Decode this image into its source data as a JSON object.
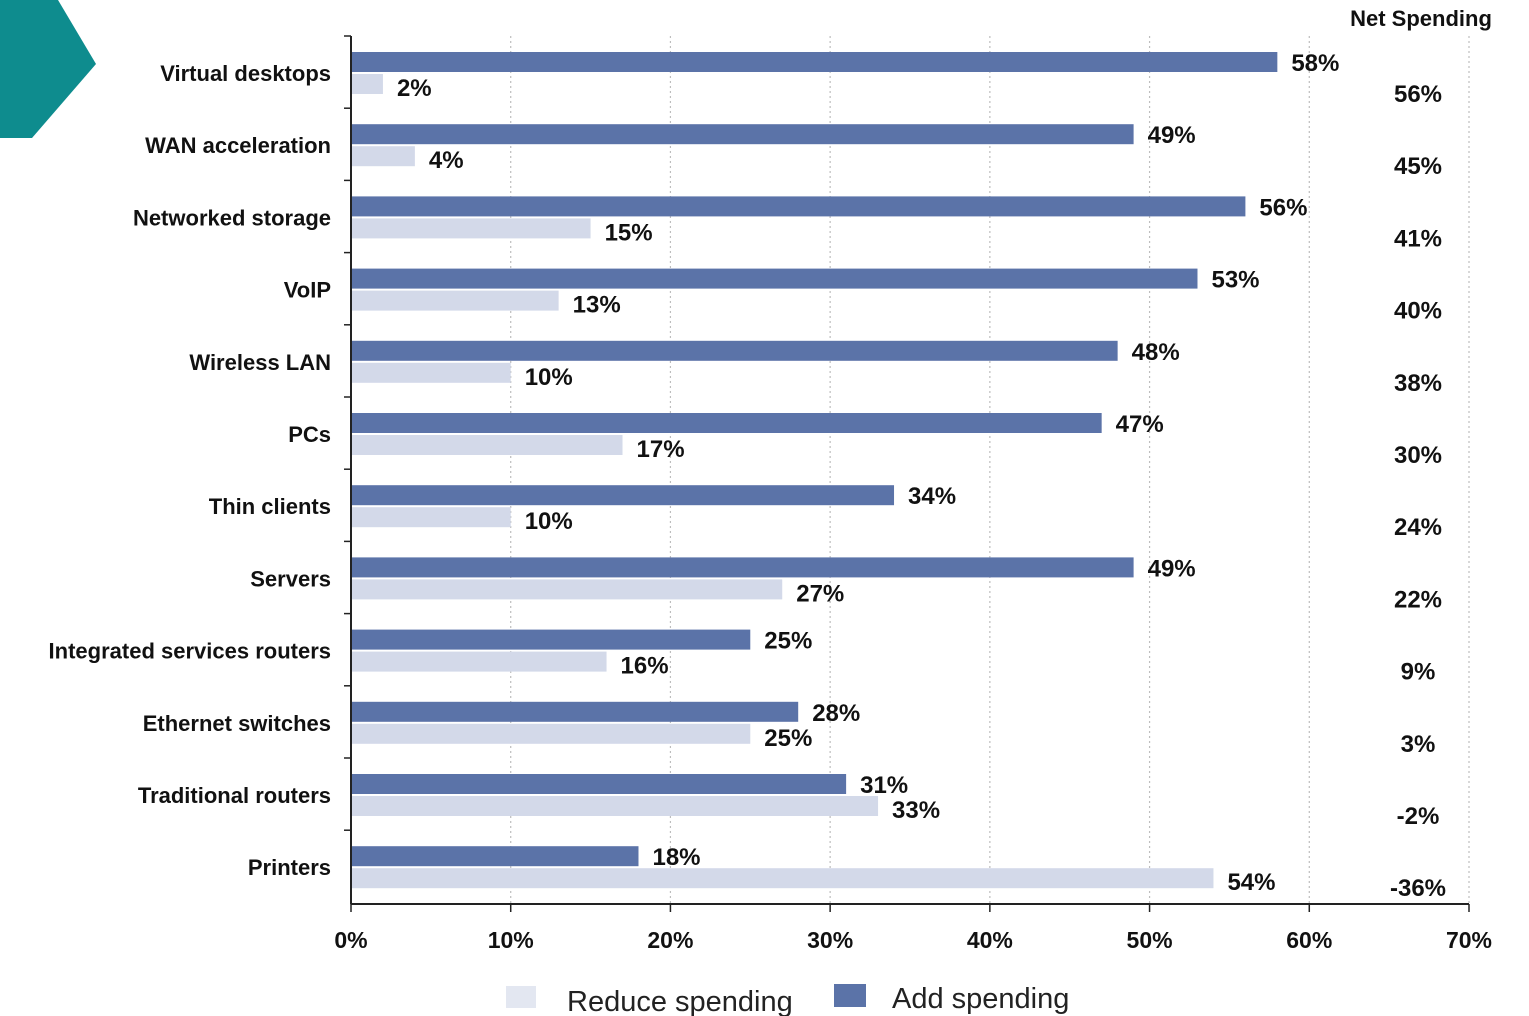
{
  "chart_data": {
    "type": "bar",
    "orientation": "horizontal",
    "categories": [
      "Virtual desktops",
      "WAN acceleration",
      "Networked storage",
      "VoIP",
      "Wireless LAN",
      "PCs",
      "Thin clients",
      "Servers",
      "Integrated services routers",
      "Ethernet switches",
      "Traditional routers",
      "Printers"
    ],
    "series": [
      {
        "name": "Add spending",
        "color": "#5b73a8",
        "values": [
          58,
          49,
          56,
          53,
          48,
          47,
          34,
          49,
          25,
          28,
          31,
          18
        ],
        "labels": [
          "58%",
          "49%",
          "56%",
          "53%",
          "48%",
          "47%",
          "34%",
          "49%",
          "25%",
          "28%",
          "31%",
          "18%"
        ]
      },
      {
        "name": "Reduce spending",
        "color": "#d3d9e9",
        "values": [
          2,
          4,
          15,
          13,
          10,
          17,
          10,
          27,
          16,
          25,
          33,
          54
        ],
        "labels": [
          "2%",
          "4%",
          "15%",
          "13%",
          "10%",
          "17%",
          "10%",
          "27%",
          "16%",
          "25%",
          "33%",
          "54%"
        ]
      }
    ],
    "net_spending": {
      "header": "Net Spending",
      "labels": [
        "56%",
        "45%",
        "41%",
        "40%",
        "38%",
        "30%",
        "24%",
        "22%",
        "9%",
        "3%",
        "-2%",
        "-36%"
      ]
    },
    "xlim": [
      0,
      70
    ],
    "xticks": [
      0,
      10,
      20,
      30,
      40,
      50,
      60,
      70
    ],
    "xtick_labels": [
      "0%",
      "10%",
      "20%",
      "30%",
      "40%",
      "50%",
      "60%",
      "70%"
    ],
    "grid": true,
    "legend_position": "bottom"
  },
  "legend": {
    "reduce_label": "Reduce spending",
    "add_label": "Add spending"
  },
  "decoration": {
    "arrow_color": "#0e8c8e"
  }
}
